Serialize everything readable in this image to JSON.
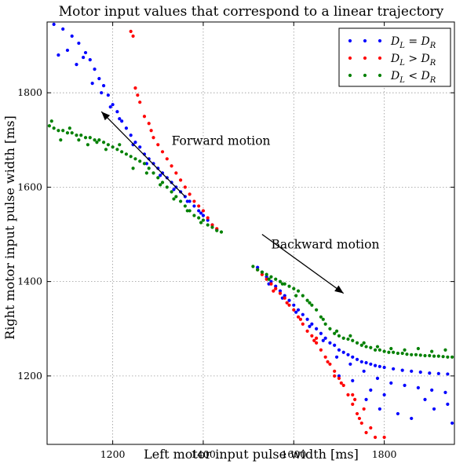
{
  "chart_data": {
    "type": "scatter",
    "title": "Motor input values that correspond to a linear trajectory",
    "xlabel": "Left motor input pulse width [ms]",
    "ylabel": "Right motor input pulse width [ms]",
    "xlim": [
      1055,
      1955
    ],
    "ylim": [
      1055,
      1950
    ],
    "xticks": [
      1200,
      1400,
      1600,
      1800
    ],
    "yticks": [
      1200,
      1400,
      1600,
      1800
    ],
    "grid": true,
    "legend_position": "top-right",
    "series": [
      {
        "name": "D_L = D_R",
        "legend_label": "DL = DR",
        "color": "#0000ff",
        "points": [
          [
            1070,
            1945
          ],
          [
            1090,
            1935
          ],
          [
            1110,
            1920
          ],
          [
            1125,
            1905
          ],
          [
            1140,
            1885
          ],
          [
            1150,
            1870
          ],
          [
            1160,
            1850
          ],
          [
            1170,
            1830
          ],
          [
            1180,
            1815
          ],
          [
            1190,
            1795
          ],
          [
            1200,
            1775
          ],
          [
            1210,
            1760
          ],
          [
            1220,
            1740
          ],
          [
            1230,
            1725
          ],
          [
            1240,
            1710
          ],
          [
            1250,
            1695
          ],
          [
            1260,
            1685
          ],
          [
            1270,
            1670
          ],
          [
            1280,
            1660
          ],
          [
            1290,
            1650
          ],
          [
            1300,
            1640
          ],
          [
            1310,
            1630
          ],
          [
            1320,
            1620
          ],
          [
            1330,
            1610
          ],
          [
            1340,
            1600
          ],
          [
            1350,
            1590
          ],
          [
            1360,
            1580
          ],
          [
            1370,
            1570
          ],
          [
            1380,
            1560
          ],
          [
            1390,
            1550
          ],
          [
            1400,
            1540
          ],
          [
            1410,
            1530
          ],
          [
            1420,
            1520
          ],
          [
            1430,
            1510
          ],
          [
            1080,
            1880
          ],
          [
            1100,
            1890
          ],
          [
            1120,
            1860
          ],
          [
            1135,
            1875
          ],
          [
            1155,
            1820
          ],
          [
            1175,
            1800
          ],
          [
            1195,
            1770
          ],
          [
            1215,
            1745
          ],
          [
            1245,
            1690
          ],
          [
            1275,
            1650
          ],
          [
            1305,
            1625
          ],
          [
            1335,
            1595
          ],
          [
            1365,
            1570
          ],
          [
            1395,
            1545
          ],
          [
            1520,
            1430
          ],
          [
            1530,
            1420
          ],
          [
            1540,
            1410
          ],
          [
            1550,
            1400
          ],
          [
            1560,
            1390
          ],
          [
            1570,
            1380
          ],
          [
            1580,
            1370
          ],
          [
            1590,
            1360
          ],
          [
            1600,
            1350
          ],
          [
            1610,
            1340
          ],
          [
            1620,
            1330
          ],
          [
            1630,
            1320
          ],
          [
            1640,
            1310
          ],
          [
            1650,
            1300
          ],
          [
            1660,
            1290
          ],
          [
            1670,
            1280
          ],
          [
            1680,
            1270
          ],
          [
            1690,
            1265
          ],
          [
            1700,
            1255
          ],
          [
            1710,
            1250
          ],
          [
            1720,
            1245
          ],
          [
            1730,
            1240
          ],
          [
            1740,
            1235
          ],
          [
            1750,
            1230
          ],
          [
            1760,
            1228
          ],
          [
            1770,
            1225
          ],
          [
            1780,
            1222
          ],
          [
            1790,
            1220
          ],
          [
            1800,
            1218
          ],
          [
            1820,
            1215
          ],
          [
            1840,
            1212
          ],
          [
            1860,
            1210
          ],
          [
            1880,
            1208
          ],
          [
            1900,
            1206
          ],
          [
            1920,
            1205
          ],
          [
            1940,
            1204
          ],
          [
            1545,
            1395
          ],
          [
            1575,
            1365
          ],
          [
            1605,
            1335
          ],
          [
            1635,
            1305
          ],
          [
            1665,
            1275
          ],
          [
            1695,
            1240
          ],
          [
            1725,
            1225
          ],
          [
            1755,
            1210
          ],
          [
            1785,
            1195
          ],
          [
            1815,
            1185
          ],
          [
            1845,
            1180
          ],
          [
            1875,
            1175
          ],
          [
            1905,
            1170
          ],
          [
            1935,
            1165
          ],
          [
            1760,
            1150
          ],
          [
            1790,
            1130
          ],
          [
            1830,
            1120
          ],
          [
            1860,
            1110
          ],
          [
            1890,
            1150
          ],
          [
            1910,
            1130
          ],
          [
            1940,
            1140
          ],
          [
            1950,
            1100
          ],
          [
            1700,
            1200
          ],
          [
            1730,
            1190
          ],
          [
            1770,
            1170
          ],
          [
            1800,
            1160
          ]
        ]
      },
      {
        "name": "D_L > D_R",
        "legend_label": "DL > DR",
        "color": "#ff0000",
        "points": [
          [
            1240,
            1930
          ],
          [
            1245,
            1920
          ],
          [
            1250,
            1810
          ],
          [
            1255,
            1795
          ],
          [
            1260,
            1780
          ],
          [
            1270,
            1750
          ],
          [
            1280,
            1735
          ],
          [
            1285,
            1720
          ],
          [
            1290,
            1705
          ],
          [
            1300,
            1690
          ],
          [
            1310,
            1675
          ],
          [
            1320,
            1660
          ],
          [
            1330,
            1645
          ],
          [
            1340,
            1630
          ],
          [
            1350,
            1615
          ],
          [
            1360,
            1600
          ],
          [
            1370,
            1585
          ],
          [
            1380,
            1570
          ],
          [
            1390,
            1560
          ],
          [
            1400,
            1550
          ],
          [
            1410,
            1535
          ],
          [
            1420,
            1520
          ],
          [
            1430,
            1512
          ],
          [
            1520,
            1425
          ],
          [
            1530,
            1415
          ],
          [
            1540,
            1405
          ],
          [
            1550,
            1395
          ],
          [
            1560,
            1385
          ],
          [
            1570,
            1375
          ],
          [
            1580,
            1365
          ],
          [
            1590,
            1350
          ],
          [
            1600,
            1340
          ],
          [
            1610,
            1325
          ],
          [
            1620,
            1310
          ],
          [
            1630,
            1295
          ],
          [
            1640,
            1285
          ],
          [
            1650,
            1270
          ],
          [
            1660,
            1255
          ],
          [
            1670,
            1240
          ],
          [
            1680,
            1225
          ],
          [
            1690,
            1210
          ],
          [
            1700,
            1195
          ],
          [
            1710,
            1180
          ],
          [
            1720,
            1160
          ],
          [
            1730,
            1140
          ],
          [
            1740,
            1120
          ],
          [
            1750,
            1100
          ],
          [
            1760,
            1080
          ],
          [
            1780,
            1070
          ],
          [
            1800,
            1070
          ],
          [
            1730,
            1160
          ],
          [
            1745,
            1110
          ],
          [
            1755,
            1130
          ],
          [
            1770,
            1090
          ],
          [
            1555,
            1380
          ],
          [
            1585,
            1355
          ],
          [
            1615,
            1320
          ],
          [
            1645,
            1275
          ],
          [
            1675,
            1230
          ],
          [
            1705,
            1185
          ],
          [
            1735,
            1150
          ],
          [
            1650,
            1280
          ],
          [
            1690,
            1200
          ]
        ]
      },
      {
        "name": "D_L < D_R",
        "legend_label": "DL < DR",
        "color": "#008000",
        "points": [
          [
            1060,
            1730
          ],
          [
            1070,
            1725
          ],
          [
            1080,
            1720
          ],
          [
            1090,
            1720
          ],
          [
            1100,
            1715
          ],
          [
            1110,
            1715
          ],
          [
            1120,
            1710
          ],
          [
            1130,
            1710
          ],
          [
            1140,
            1705
          ],
          [
            1150,
            1705
          ],
          [
            1160,
            1700
          ],
          [
            1170,
            1700
          ],
          [
            1180,
            1695
          ],
          [
            1190,
            1690
          ],
          [
            1200,
            1685
          ],
          [
            1210,
            1680
          ],
          [
            1220,
            1675
          ],
          [
            1230,
            1670
          ],
          [
            1240,
            1665
          ],
          [
            1250,
            1660
          ],
          [
            1260,
            1655
          ],
          [
            1270,
            1650
          ],
          [
            1280,
            1640
          ],
          [
            1290,
            1630
          ],
          [
            1300,
            1620
          ],
          [
            1310,
            1610
          ],
          [
            1320,
            1600
          ],
          [
            1330,
            1590
          ],
          [
            1340,
            1580
          ],
          [
            1350,
            1570
          ],
          [
            1360,
            1560
          ],
          [
            1370,
            1550
          ],
          [
            1380,
            1540
          ],
          [
            1390,
            1535
          ],
          [
            1400,
            1530
          ],
          [
            1410,
            1520
          ],
          [
            1420,
            1515
          ],
          [
            1430,
            1508
          ],
          [
            1440,
            1505
          ],
          [
            1065,
            1740
          ],
          [
            1085,
            1700
          ],
          [
            1105,
            1725
          ],
          [
            1125,
            1700
          ],
          [
            1145,
            1690
          ],
          [
            1165,
            1695
          ],
          [
            1185,
            1680
          ],
          [
            1215,
            1690
          ],
          [
            1245,
            1640
          ],
          [
            1275,
            1630
          ],
          [
            1305,
            1605
          ],
          [
            1335,
            1575
          ],
          [
            1365,
            1550
          ],
          [
            1395,
            1525
          ],
          [
            1510,
            1432
          ],
          [
            1520,
            1425
          ],
          [
            1530,
            1420
          ],
          [
            1540,
            1415
          ],
          [
            1550,
            1410
          ],
          [
            1560,
            1405
          ],
          [
            1570,
            1400
          ],
          [
            1580,
            1395
          ],
          [
            1590,
            1390
          ],
          [
            1600,
            1385
          ],
          [
            1610,
            1380
          ],
          [
            1620,
            1370
          ],
          [
            1630,
            1360
          ],
          [
            1640,
            1350
          ],
          [
            1650,
            1340
          ],
          [
            1660,
            1325
          ],
          [
            1670,
            1310
          ],
          [
            1680,
            1300
          ],
          [
            1690,
            1290
          ],
          [
            1700,
            1285
          ],
          [
            1710,
            1280
          ],
          [
            1720,
            1278
          ],
          [
            1730,
            1275
          ],
          [
            1740,
            1270
          ],
          [
            1750,
            1265
          ],
          [
            1760,
            1262
          ],
          [
            1770,
            1260
          ],
          [
            1780,
            1255
          ],
          [
            1790,
            1255
          ],
          [
            1800,
            1252
          ],
          [
            1810,
            1250
          ],
          [
            1820,
            1250
          ],
          [
            1830,
            1248
          ],
          [
            1840,
            1248
          ],
          [
            1850,
            1246
          ],
          [
            1860,
            1245
          ],
          [
            1870,
            1245
          ],
          [
            1880,
            1244
          ],
          [
            1890,
            1243
          ],
          [
            1900,
            1243
          ],
          [
            1910,
            1242
          ],
          [
            1920,
            1242
          ],
          [
            1930,
            1241
          ],
          [
            1940,
            1240
          ],
          [
            1950,
            1240
          ],
          [
            1545,
            1405
          ],
          [
            1575,
            1395
          ],
          [
            1605,
            1370
          ],
          [
            1635,
            1355
          ],
          [
            1665,
            1320
          ],
          [
            1695,
            1295
          ],
          [
            1725,
            1285
          ],
          [
            1755,
            1270
          ],
          [
            1785,
            1262
          ],
          [
            1815,
            1258
          ],
          [
            1845,
            1255
          ],
          [
            1875,
            1258
          ],
          [
            1905,
            1252
          ],
          [
            1935,
            1255
          ]
        ]
      }
    ],
    "annotations": [
      {
        "text": "Forward motion",
        "x": 1330,
        "y": 1690
      },
      {
        "text": "Backward motion",
        "x": 1550,
        "y": 1470
      }
    ],
    "arrows": [
      {
        "from": [
          1360,
          1580
        ],
        "to": [
          1175,
          1760
        ]
      },
      {
        "from": [
          1530,
          1500
        ],
        "to": [
          1710,
          1375
        ]
      }
    ]
  }
}
